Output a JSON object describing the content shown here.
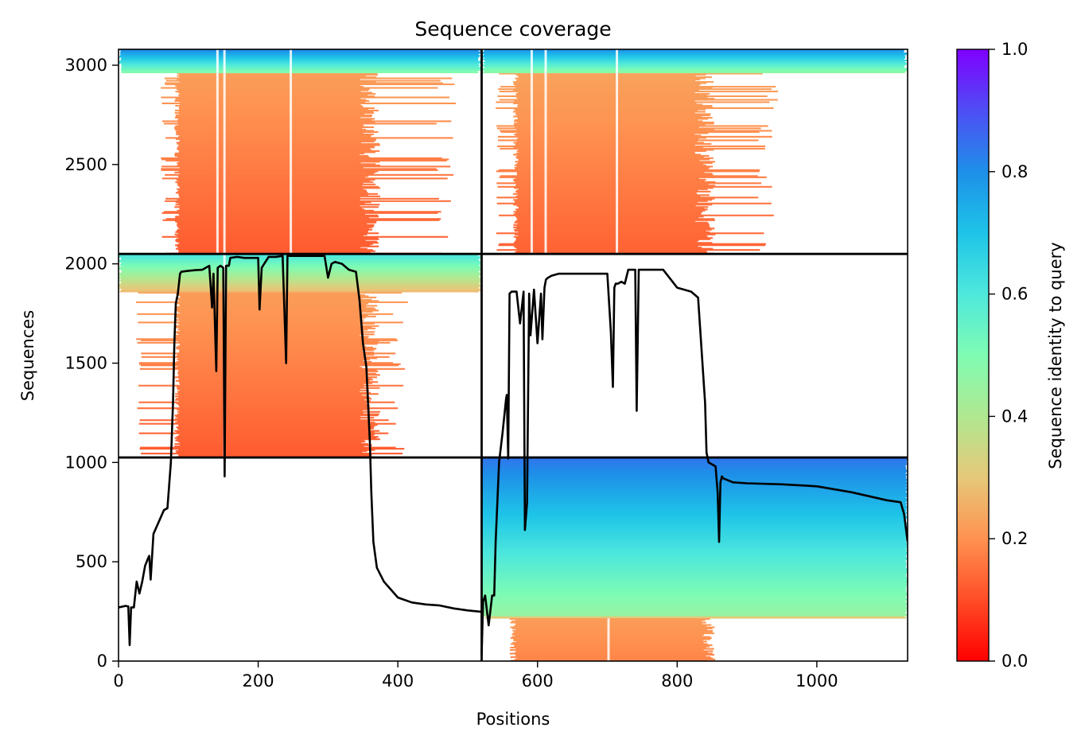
{
  "chart_data": {
    "type": "heatmap",
    "title": "Sequence coverage",
    "xlabel": "Positions",
    "ylabel": "Sequences",
    "xlim": [
      0,
      1130
    ],
    "ylim": [
      0,
      3080
    ],
    "xticks": [
      0,
      200,
      400,
      600,
      800,
      1000
    ],
    "yticks": [
      0,
      500,
      1000,
      1500,
      2000,
      2500,
      3000
    ],
    "grid": false,
    "colorbar": {
      "label": "Sequence identity to query",
      "ticks": [
        0.0,
        0.2,
        0.4,
        0.6,
        0.8,
        1.0
      ],
      "tick_labels": [
        "0.0",
        "0.2",
        "0.4",
        "0.6",
        "0.8",
        "1.0"
      ],
      "colormap": "rainbow_r"
    },
    "chain_break_x": 520,
    "block_break_y": [
      1025,
      2050
    ],
    "blocks": [
      {
        "x0": 0,
        "x1": 520,
        "y0": 2050,
        "y1": 3080,
        "core": [
          80,
          360
        ],
        "alt": [
          60,
          470
        ],
        "id_low": 0.12,
        "id_high": 0.82,
        "top_frac": 0.12
      },
      {
        "x0": 520,
        "x1": 1130,
        "y0": 2050,
        "y1": 3080,
        "core": [
          565,
          840
        ],
        "alt": [
          540,
          930
        ],
        "id_low": 0.13,
        "id_high": 0.8,
        "top_frac": 0.12
      },
      {
        "x0": 0,
        "x1": 520,
        "y0": 1025,
        "y1": 2050,
        "core": [
          80,
          360
        ],
        "alt": [
          25,
          400
        ],
        "id_low": 0.12,
        "id_high": 0.62,
        "top_frac": 0.19
      },
      {
        "x0": 520,
        "x1": 1130,
        "y0": 0,
        "y1": 1025,
        "core": [
          520,
          1130
        ],
        "alt": [
          520,
          1130
        ],
        "id_low": 0.22,
        "id_high": 0.84,
        "top_frac": 0.78
      }
    ],
    "bottom_right_lower": {
      "x0": 560,
      "x1": 845,
      "y0": 0,
      "y1": 215,
      "id": 0.18
    },
    "series": [
      {
        "x": [
          0,
          10,
          14,
          16,
          18,
          22,
          26,
          30,
          34,
          38,
          42,
          44,
          46,
          50,
          55,
          60,
          65,
          70,
          75,
          78,
          80,
          82,
          85,
          88,
          90,
          100,
          110,
          120,
          130,
          134,
          136,
          140,
          142,
          146,
          150,
          152,
          154,
          158,
          160,
          170,
          180,
          190,
          200,
          202,
          205,
          215,
          225,
          235,
          240,
          242,
          245,
          255,
          265,
          280,
          295,
          300,
          305,
          310,
          320,
          330,
          340,
          345,
          350,
          355,
          358,
          360,
          362,
          365,
          370,
          380,
          390,
          400,
          420,
          440,
          460,
          480,
          500,
          520
        ],
        "y": [
          270,
          278,
          275,
          80,
          270,
          270,
          400,
          340,
          400,
          480,
          515,
          530,
          410,
          640,
          680,
          720,
          760,
          770,
          1000,
          1300,
          1600,
          1800,
          1850,
          1950,
          1960,
          1965,
          1968,
          1970,
          1990,
          1780,
          1950,
          1460,
          1980,
          1990,
          1980,
          930,
          1990,
          1990,
          2030,
          2035,
          2030,
          2030,
          2030,
          1770,
          1980,
          2035,
          2035,
          2040,
          1500,
          2040,
          2040,
          2040,
          2040,
          2040,
          2040,
          1930,
          2000,
          2010,
          2000,
          1970,
          1960,
          1820,
          1600,
          1480,
          1250,
          1100,
          850,
          600,
          470,
          400,
          360,
          320,
          295,
          285,
          280,
          265,
          255,
          248
        ]
      },
      {
        "x": [
          520,
          522,
          525,
          530,
          535,
          538,
          540,
          545,
          550,
          555,
          556,
          558,
          560,
          563,
          565,
          570,
          575,
          580,
          582,
          585,
          588,
          590,
          595,
          600,
          605,
          607,
          610,
          612,
          615,
          620,
          625,
          630,
          640,
          660,
          680,
          700,
          705,
          708,
          710,
          712,
          715,
          720,
          725,
          730,
          740,
          742,
          745,
          760,
          780,
          800,
          810,
          820,
          830,
          840,
          842,
          845,
          850,
          855,
          858,
          860,
          862,
          864,
          866,
          880,
          900,
          950,
          1000,
          1050,
          1100,
          1120,
          1125,
          1130
        ],
        "y": [
          30,
          300,
          330,
          180,
          330,
          330,
          600,
          1000,
          1150,
          1320,
          1340,
          1020,
          1850,
          1860,
          1860,
          1860,
          1700,
          1860,
          660,
          800,
          1850,
          1640,
          1870,
          1600,
          1850,
          1620,
          1880,
          1920,
          1930,
          1940,
          1945,
          1950,
          1950,
          1950,
          1950,
          1950,
          1660,
          1380,
          1880,
          1900,
          1900,
          1910,
          1900,
          1970,
          1970,
          1260,
          1970,
          1970,
          1970,
          1880,
          1870,
          1860,
          1830,
          1300,
          1050,
          1000,
          990,
          980,
          850,
          600,
          900,
          930,
          920,
          900,
          895,
          890,
          880,
          850,
          810,
          800,
          740,
          600
        ]
      }
    ]
  }
}
